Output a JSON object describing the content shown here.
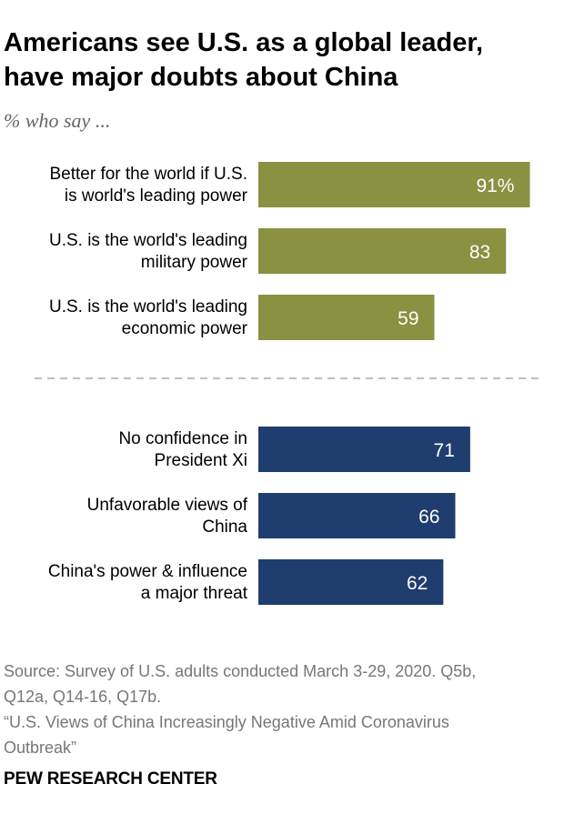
{
  "title_line1": "Americans see U.S. as a global leader,",
  "title_line2": "have major doubts about China",
  "subtitle": "% who say ...",
  "source_line1": "Source: Survey of U.S. adults conducted March 3-29, 2020. Q5b,",
  "source_line2": "Q12a, Q14-16, Q17b.",
  "source_line3": "“U.S. Views of China Increasingly Negative Amid Coronavirus",
  "source_line4": "Outbreak”",
  "credit": "PEW RESEARCH CENTER",
  "colors": {
    "us_bars": "#8a9140",
    "china_bars": "#1f3d6e",
    "divider": "#999999"
  },
  "chart_data": {
    "type": "bar",
    "orientation": "horizontal",
    "xlim": [
      0,
      100
    ],
    "groups": [
      {
        "color": "#8a9140",
        "items": [
          {
            "label_lines": [
              "Better for the world if U.S.",
              "is world's leading power"
            ],
            "value": 91,
            "value_label": "91%"
          },
          {
            "label_lines": [
              "U.S. is the world's leading",
              "military power"
            ],
            "value": 83,
            "value_label": "83"
          },
          {
            "label_lines": [
              "U.S. is the world's leading",
              "economic power"
            ],
            "value": 59,
            "value_label": "59"
          }
        ]
      },
      {
        "color": "#1f3d6e",
        "items": [
          {
            "label_lines": [
              "No confidence in",
              "President Xi"
            ],
            "value": 71,
            "value_label": "71"
          },
          {
            "label_lines": [
              "Unfavorable views of",
              "China"
            ],
            "value": 66,
            "value_label": "66"
          },
          {
            "label_lines": [
              "China's power & influence",
              "a major threat"
            ],
            "value": 62,
            "value_label": "62"
          }
        ]
      }
    ]
  }
}
